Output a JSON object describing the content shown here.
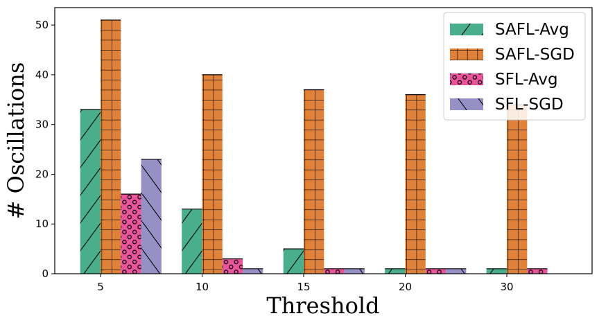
{
  "chart_data": {
    "type": "bar",
    "title": "",
    "xlabel": "Threshold",
    "ylabel": "# Oscillations",
    "categories": [
      "5",
      "10",
      "15",
      "20",
      "30"
    ],
    "ylim": [
      0,
      53.5
    ],
    "yticks": [
      0,
      10,
      20,
      30,
      40,
      50
    ],
    "grid": false,
    "legend_position": "top-right",
    "series": [
      {
        "name": "SAFL-Avg",
        "color": "#4aae8c",
        "pattern": "diagonal",
        "values": [
          33,
          13,
          5,
          1,
          1
        ]
      },
      {
        "name": "SAFL-SGD",
        "color": "#e0813a",
        "pattern": "grid",
        "values": [
          51,
          40,
          37,
          36,
          34
        ]
      },
      {
        "name": "SFL-Avg",
        "color": "#e8559a",
        "pattern": "circles",
        "values": [
          16,
          3,
          1,
          1,
          1
        ]
      },
      {
        "name": "SFL-SGD",
        "color": "#9690c4",
        "pattern": "backslash",
        "values": [
          23,
          1,
          1,
          1,
          0
        ]
      }
    ]
  }
}
